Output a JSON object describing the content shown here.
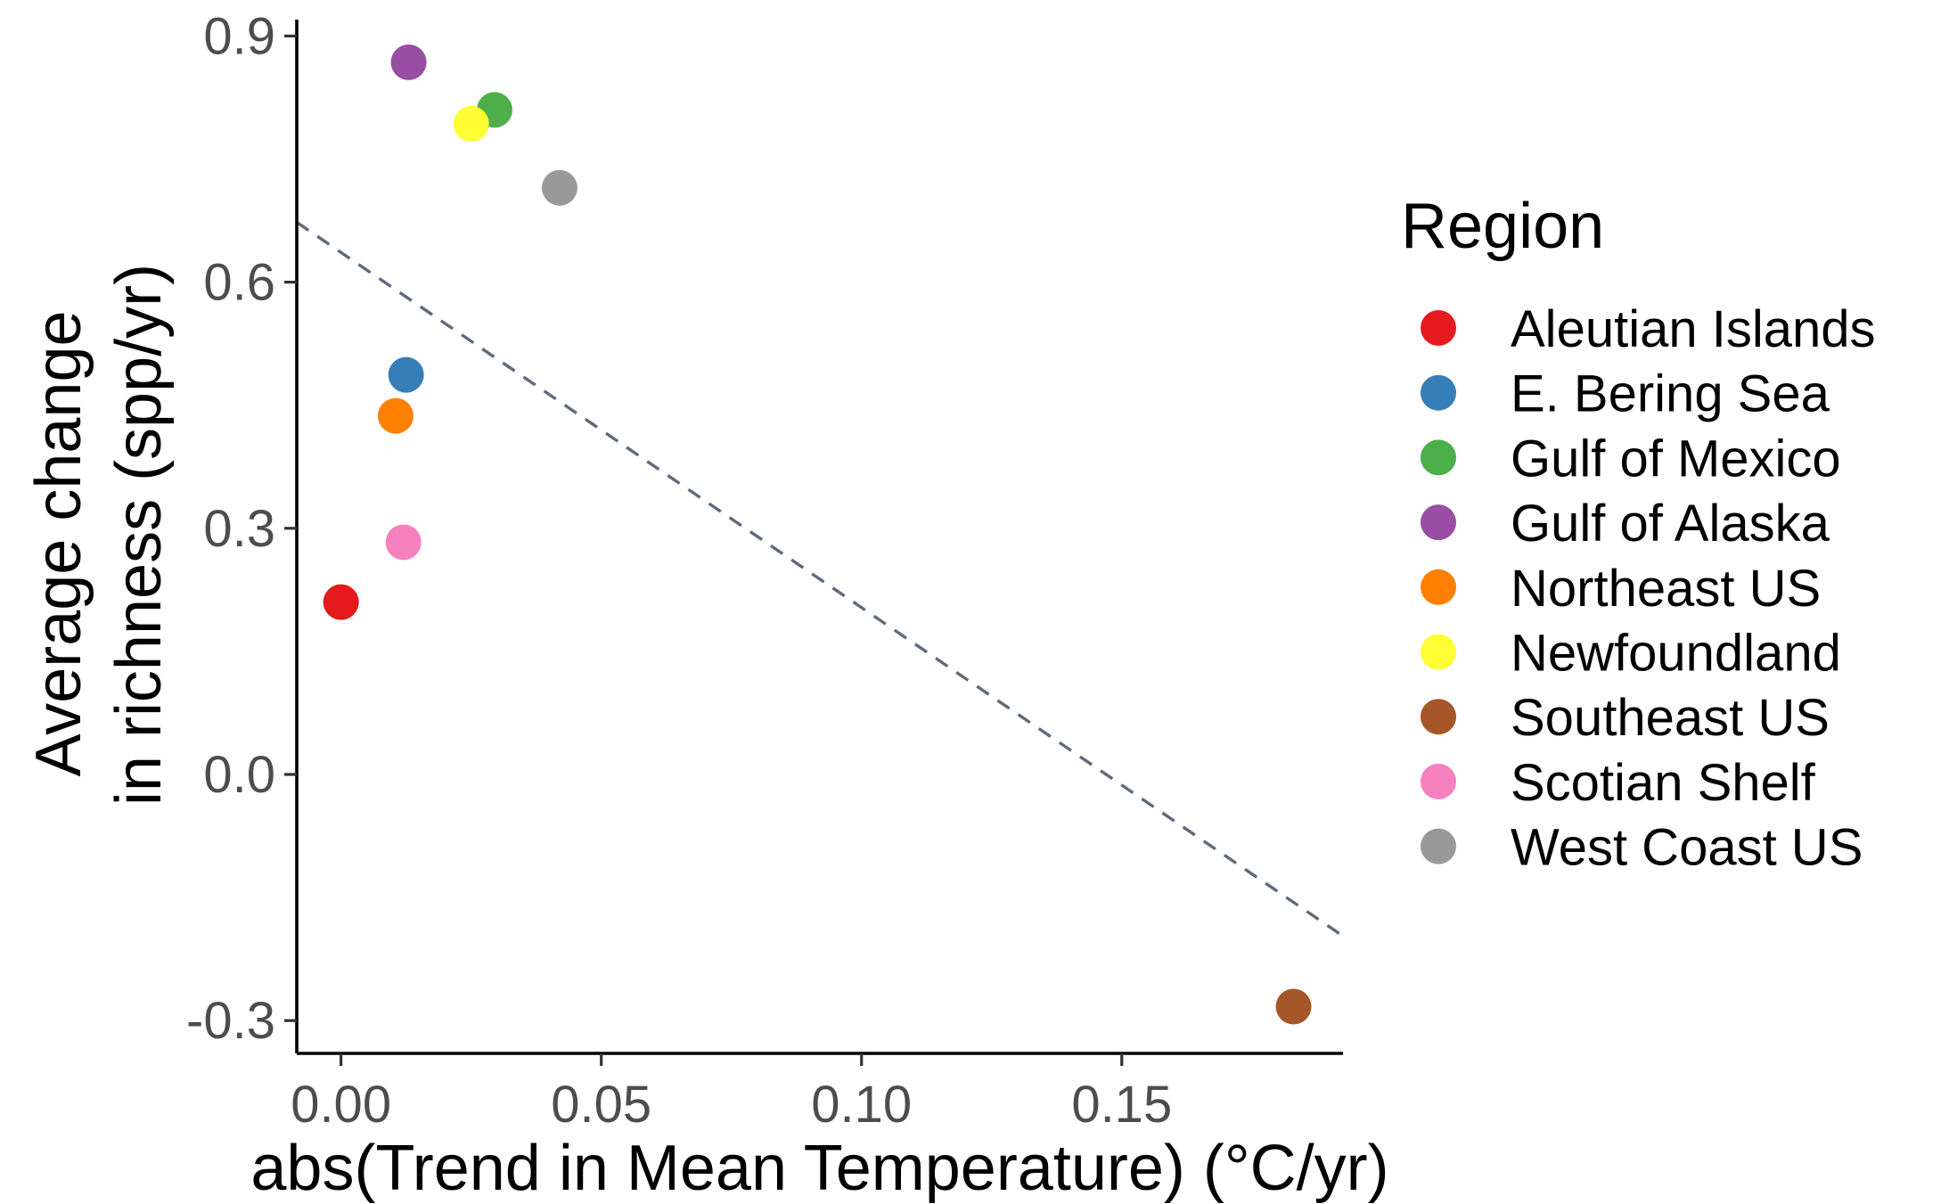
{
  "chart_data": {
    "type": "scatter",
    "xlabel": "abs(Trend in Mean Temperature) (°C/yr)",
    "ylabel_lines": [
      "Average change",
      "in richness (spp/yr)"
    ],
    "xlim": [
      -0.0085,
      0.1925
    ],
    "ylim": [
      -0.34,
      0.92
    ],
    "x_ticks": [
      0.0,
      0.05,
      0.1,
      0.15
    ],
    "x_tick_labels": [
      "0.00",
      "0.05",
      "0.10",
      "0.15"
    ],
    "y_ticks": [
      -0.3,
      0.0,
      0.3,
      0.6,
      0.9
    ],
    "y_tick_labels": [
      "-0.3",
      "0.0",
      "0.3",
      "0.6",
      "0.9"
    ],
    "grid": false,
    "legend_title": "Region",
    "legend_position": "right",
    "series": [
      {
        "name": "Aleutian Islands",
        "color": "#E41A1C",
        "x": 0.0,
        "y": 0.21
      },
      {
        "name": "E. Bering Sea",
        "color": "#377EB8",
        "x": 0.0125,
        "y": 0.487
      },
      {
        "name": "Gulf of Mexico",
        "color": "#4DAF4A",
        "x": 0.0295,
        "y": 0.81
      },
      {
        "name": "Gulf of Alaska",
        "color": "#984EA3",
        "x": 0.013,
        "y": 0.868
      },
      {
        "name": "Northeast US",
        "color": "#FF7F00",
        "x": 0.0105,
        "y": 0.437
      },
      {
        "name": "Newfoundland",
        "color": "#FFFF33",
        "x": 0.025,
        "y": 0.793
      },
      {
        "name": "Southeast US",
        "color": "#A65628",
        "x": 0.183,
        "y": -0.283
      },
      {
        "name": "Scotian Shelf",
        "color": "#F781BF",
        "x": 0.012,
        "y": 0.283
      },
      {
        "name": "West Coast US",
        "color": "#999999",
        "x": 0.042,
        "y": 0.715
      }
    ],
    "trend_line": {
      "style": "dashed",
      "color": "#5f6b7a",
      "x": [
        -0.0085,
        0.1925
      ],
      "y": [
        0.673,
        -0.197
      ]
    }
  }
}
